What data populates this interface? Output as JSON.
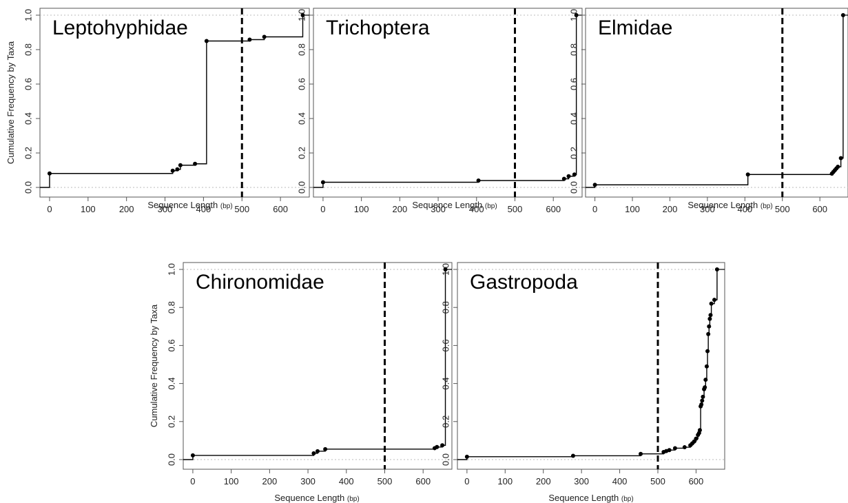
{
  "chart_data": [
    {
      "type": "step",
      "title": "Leptohyphidae",
      "xlabel": "Sequence Length",
      "xlabel_unit": "(bp)",
      "ylabel": "Cumulative Frequency by Taxa",
      "xlim": [
        -25,
        675
      ],
      "ylim": [
        0,
        1
      ],
      "xticks": [
        "0",
        "100",
        "200",
        "300",
        "400",
        "500",
        "600"
      ],
      "yticks": [
        "0.0",
        "0.2",
        "0.4",
        "0.6",
        "0.8",
        "1.0"
      ],
      "threshold": 500,
      "x": [
        0,
        320,
        332,
        340,
        378,
        408,
        520,
        558,
        658
      ],
      "y": [
        0.081,
        0.097,
        0.105,
        0.129,
        0.137,
        0.85,
        0.858,
        0.874,
        1.0
      ]
    },
    {
      "type": "step",
      "title": "Trichoptera",
      "xlabel": "Sequence Length",
      "xlabel_unit": "(bp)",
      "ylabel": "",
      "xlim": [
        -25,
        675
      ],
      "ylim": [
        0,
        1
      ],
      "xticks": [
        "0",
        "100",
        "200",
        "300",
        "400",
        "500",
        "600"
      ],
      "yticks": [
        "0.0",
        "0.2",
        "0.4",
        "0.6",
        "0.8",
        "1.0"
      ],
      "threshold": 500,
      "x": [
        0,
        405,
        628,
        640,
        655,
        660
      ],
      "y": [
        0.03,
        0.04,
        0.05,
        0.065,
        0.075,
        1.0
      ]
    },
    {
      "type": "step",
      "title": "Elmidae",
      "xlabel": "Sequence Length",
      "xlabel_unit": "(bp)",
      "ylabel": "",
      "xlim": [
        -25,
        675
      ],
      "ylim": [
        0,
        1
      ],
      "xticks": [
        "0",
        "100",
        "200",
        "300",
        "400",
        "500",
        "600"
      ],
      "yticks": [
        "0.0",
        "0.2",
        "0.4",
        "0.6",
        "0.8",
        "1.0"
      ],
      "threshold": 500,
      "x": [
        0,
        408,
        632,
        636,
        640,
        644,
        648,
        656,
        662
      ],
      "y": [
        0.015,
        0.075,
        0.08,
        0.09,
        0.1,
        0.11,
        0.12,
        0.17,
        1.0
      ]
    },
    {
      "type": "step",
      "title": "Chironomidae",
      "xlabel": "Sequence Length",
      "xlabel_unit": "(bp)",
      "ylabel": "Cumulative Frequency by Taxa",
      "xlim": [
        -25,
        675
      ],
      "ylim": [
        0,
        1
      ],
      "xticks": [
        "0",
        "100",
        "200",
        "300",
        "400",
        "500",
        "600"
      ],
      "yticks": [
        "0.0",
        "0.2",
        "0.4",
        "0.6",
        "0.8",
        "1.0"
      ],
      "threshold": 500,
      "x": [
        0,
        315,
        325,
        345,
        630,
        636,
        650,
        658
      ],
      "y": [
        0.022,
        0.033,
        0.044,
        0.055,
        0.06,
        0.066,
        0.075,
        1.0
      ]
    },
    {
      "type": "step",
      "title": "Gastropoda",
      "xlabel": "Sequence Length",
      "xlabel_unit": "(bp)",
      "ylabel": "",
      "xlim": [
        -25,
        675
      ],
      "ylim": [
        0,
        1
      ],
      "xticks": [
        "0",
        "100",
        "200",
        "300",
        "400",
        "500",
        "600"
      ],
      "yticks": [
        "0.0",
        "0.2",
        "0.4",
        "0.6",
        "0.8",
        "1.0"
      ],
      "threshold": 500,
      "x": [
        0,
        278,
        455,
        515,
        522,
        530,
        545,
        570,
        585,
        590,
        595,
        600,
        605,
        608,
        610,
        612,
        614,
        616,
        618,
        621,
        623,
        625,
        628,
        630,
        632,
        634,
        636,
        638,
        640,
        648,
        655
      ],
      "y": [
        0.015,
        0.02,
        0.03,
        0.04,
        0.045,
        0.05,
        0.06,
        0.065,
        0.075,
        0.085,
        0.095,
        0.11,
        0.13,
        0.14,
        0.155,
        0.28,
        0.29,
        0.31,
        0.33,
        0.37,
        0.38,
        0.42,
        0.49,
        0.57,
        0.66,
        0.7,
        0.74,
        0.76,
        0.82,
        0.84,
        1.0
      ]
    }
  ]
}
